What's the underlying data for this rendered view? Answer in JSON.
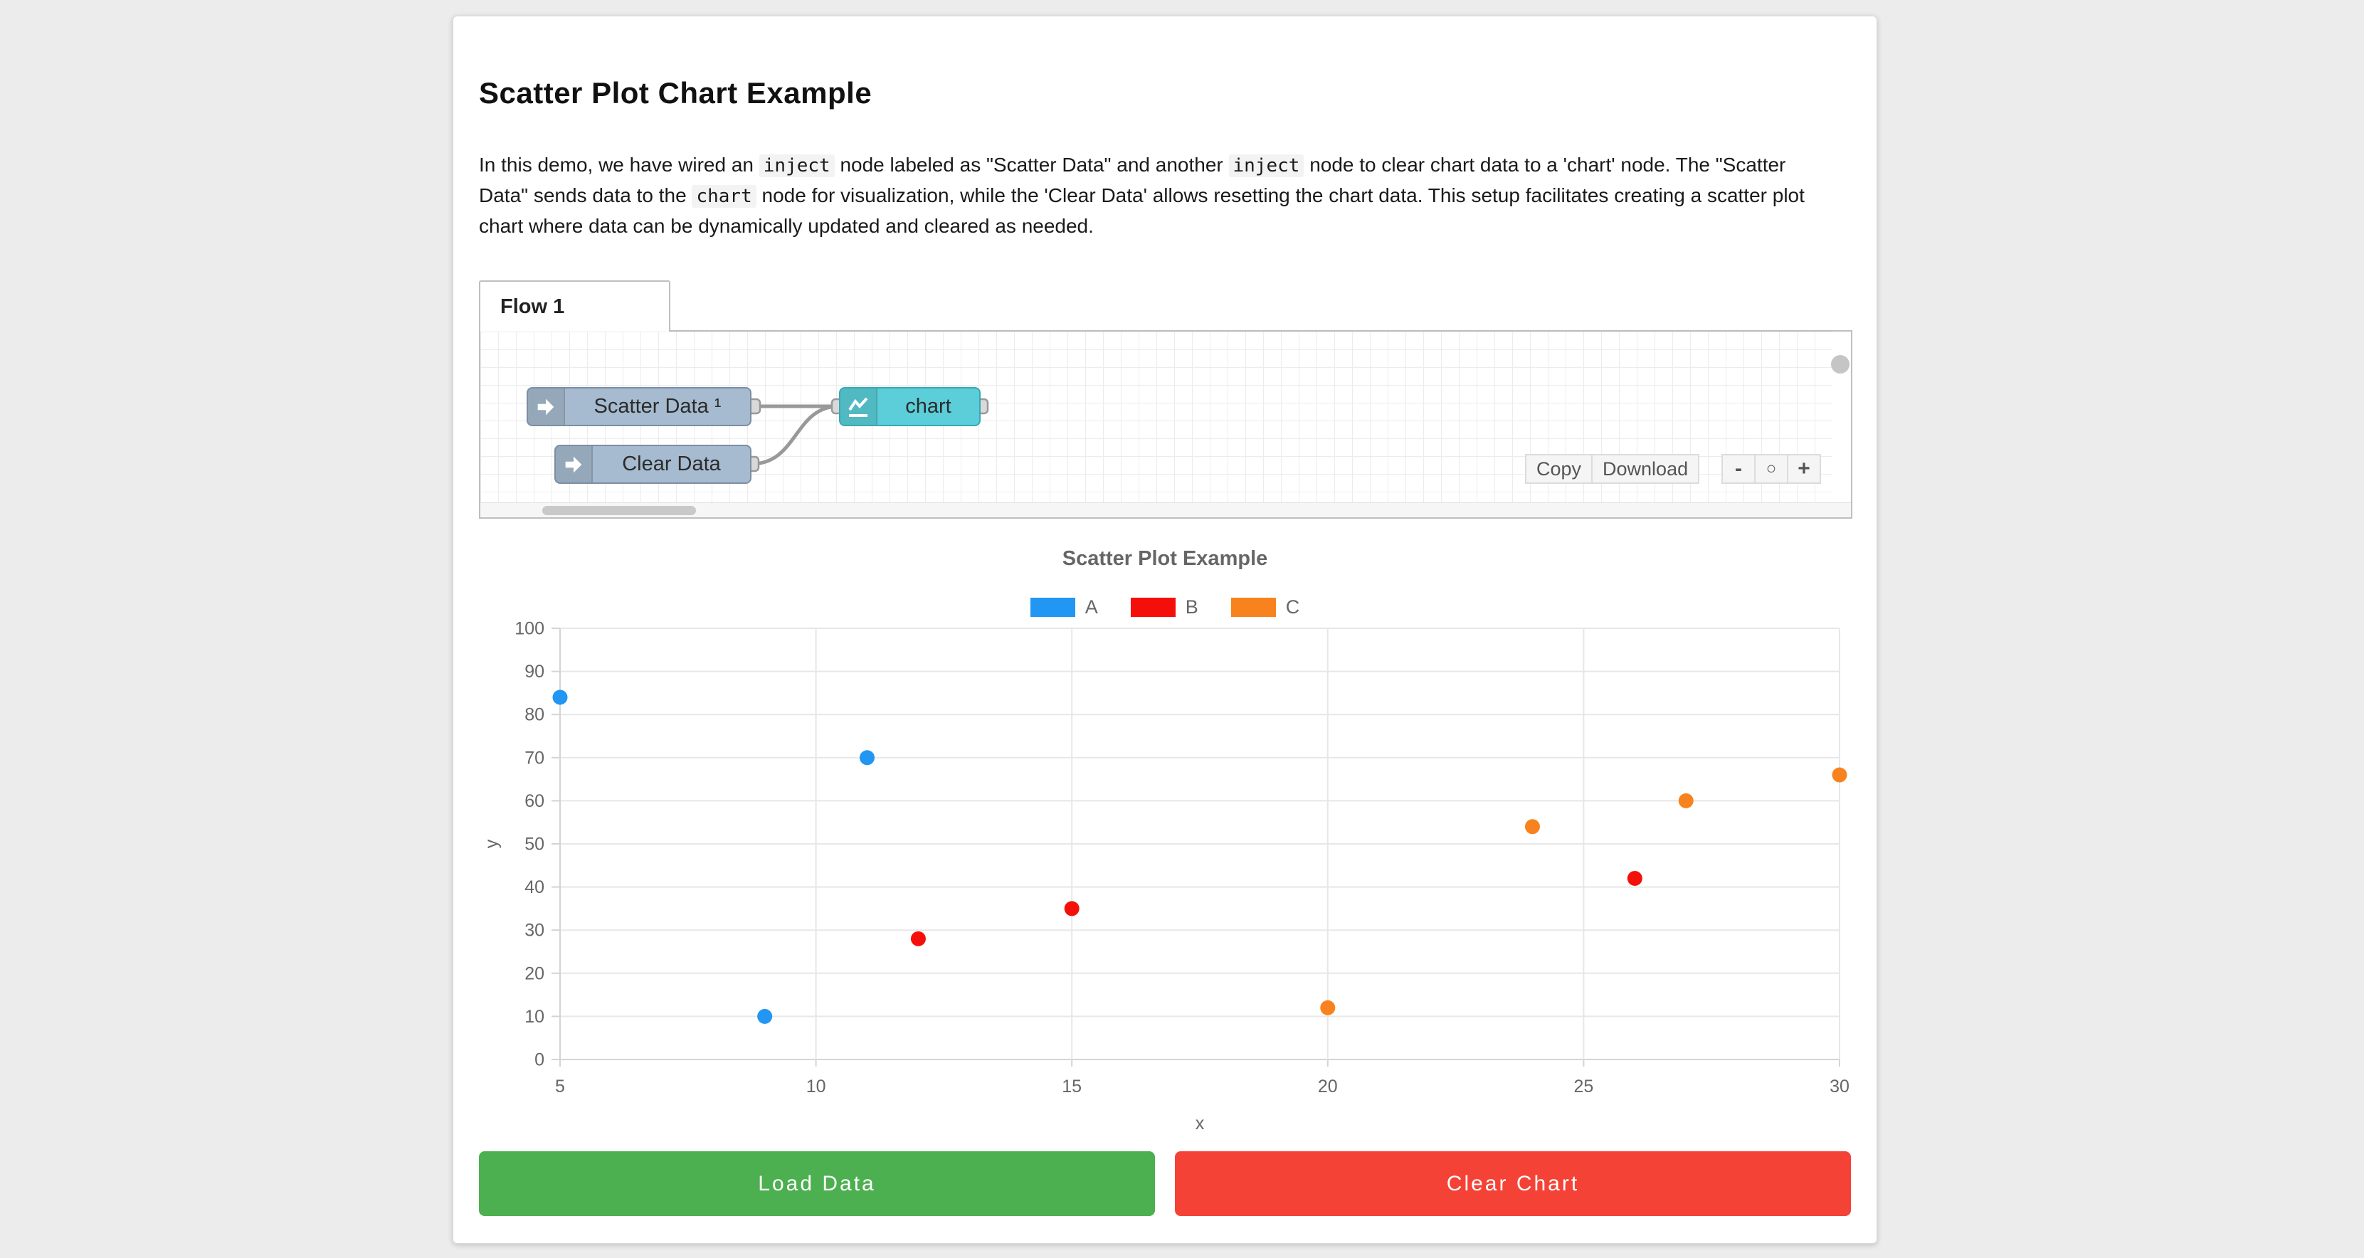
{
  "page": {
    "title": "Scatter Plot Chart Example"
  },
  "description": {
    "segments": [
      {
        "text": "In this demo, we have wired an ",
        "code": false
      },
      {
        "text": "inject",
        "code": true
      },
      {
        "text": " node labeled as \"Scatter Data\" and another ",
        "code": false
      },
      {
        "text": "inject",
        "code": true
      },
      {
        "text": " node to clear chart data to a 'chart' node. The \"Scatter Data\" sends data to the ",
        "code": false
      },
      {
        "text": "chart",
        "code": true
      },
      {
        "text": " node for visualization, while the 'Clear Data' allows resetting the chart data. This setup facilitates creating a scatter plot chart where data can be dynamically updated and cleared as needed.",
        "code": false
      }
    ]
  },
  "flow": {
    "tab_label": "Flow 1",
    "nodes": [
      {
        "label": "Scatter Data ¹",
        "type": "inject"
      },
      {
        "label": "Clear Data",
        "type": "inject"
      },
      {
        "label": "chart",
        "type": "chart"
      }
    ],
    "toolbar": {
      "copy_label": "Copy",
      "download_label": "Download",
      "zoom_out_label": "-",
      "zoom_reset_label": "○",
      "zoom_in_label": "+"
    }
  },
  "chart_data": {
    "type": "scatter",
    "title": "Scatter Plot Example",
    "xlabel": "x",
    "ylabel": "y",
    "xlim": [
      5,
      30
    ],
    "ylim": [
      0,
      100
    ],
    "x_ticks": [
      5,
      10,
      15,
      20,
      25,
      30
    ],
    "y_ticks": [
      0,
      10,
      20,
      30,
      40,
      50,
      60,
      70,
      80,
      90,
      100
    ],
    "grid": true,
    "legend_position": "top",
    "series": [
      {
        "name": "A",
        "color": "#2196f3",
        "points": [
          [
            5,
            84
          ],
          [
            9,
            10
          ],
          [
            11,
            70
          ]
        ]
      },
      {
        "name": "B",
        "color": "#f50f0b",
        "points": [
          [
            12,
            28
          ],
          [
            15,
            35
          ],
          [
            26,
            42
          ]
        ]
      },
      {
        "name": "C",
        "color": "#f8821d",
        "points": [
          [
            20,
            12
          ],
          [
            24,
            54
          ],
          [
            27,
            60
          ],
          [
            30,
            66
          ]
        ]
      }
    ]
  },
  "actions": {
    "load_label": "Load Data",
    "clear_label": "Clear Chart"
  },
  "colors": {
    "load_button": "#4caf50",
    "clear_button": "#f44336",
    "inject_node": "#a6bbcf",
    "chart_node": "#5bced9",
    "wire": "#999999",
    "grid_line": "#e7e7e7",
    "axis_line": "#d4d4d4",
    "tick_text": "#666666"
  }
}
